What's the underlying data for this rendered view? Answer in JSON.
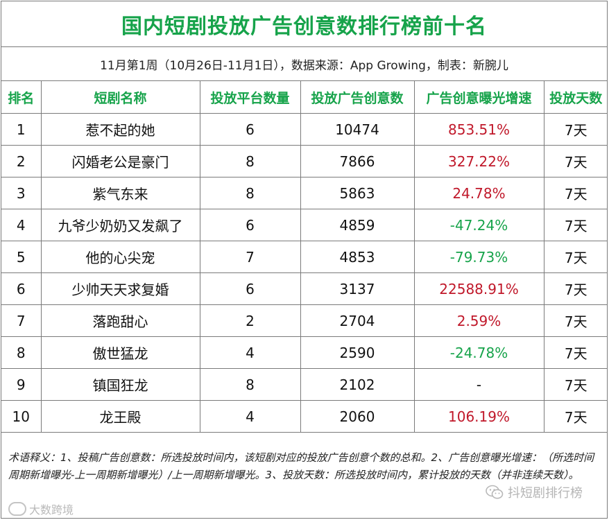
{
  "title": "国内短剧投放广告创意数排行榜前十名",
  "subtitle": "11月第1周（10月26日-11月1日），数据来源：App Growing，制表：新腕儿",
  "columns": [
    "排名",
    "短剧名称",
    "投放平台数量",
    "投放广告创意数",
    "广告创意曝光增速",
    "投放天数"
  ],
  "rows": [
    {
      "rank": "1",
      "name": "惹不起的她",
      "platforms": "6",
      "creatives": "10474",
      "growth": "853.51%",
      "trend": "up",
      "days": "7天"
    },
    {
      "rank": "2",
      "name": "闪婚老公是豪门",
      "platforms": "8",
      "creatives": "7866",
      "growth": "327.22%",
      "trend": "up",
      "days": "7天"
    },
    {
      "rank": "3",
      "name": "紫气东来",
      "platforms": "8",
      "creatives": "5863",
      "growth": "24.78%",
      "trend": "up",
      "days": "7天"
    },
    {
      "rank": "4",
      "name": "九爷少奶奶又发飙了",
      "platforms": "6",
      "creatives": "4859",
      "growth": "-47.24%",
      "trend": "down",
      "days": "7天"
    },
    {
      "rank": "5",
      "name": "他的心尖宠",
      "platforms": "7",
      "creatives": "4853",
      "growth": "-79.73%",
      "trend": "down",
      "days": "7天"
    },
    {
      "rank": "6",
      "name": "少帅天天求复婚",
      "platforms": "6",
      "creatives": "3137",
      "growth": "22588.91%",
      "trend": "up",
      "days": "7天"
    },
    {
      "rank": "7",
      "name": "落跑甜心",
      "platforms": "2",
      "creatives": "2704",
      "growth": "2.59%",
      "trend": "up",
      "days": "7天"
    },
    {
      "rank": "8",
      "name": "傲世猛龙",
      "platforms": "4",
      "creatives": "2590",
      "growth": "-24.78%",
      "trend": "down",
      "days": "7天"
    },
    {
      "rank": "9",
      "name": "镇国狂龙",
      "platforms": "8",
      "creatives": "2102",
      "growth": "-",
      "trend": "flat",
      "days": "7天"
    },
    {
      "rank": "10",
      "name": "龙王殿",
      "platforms": "4",
      "creatives": "2060",
      "growth": "106.19%",
      "trend": "up",
      "days": "7天"
    }
  ],
  "notes": "术语释义：1、投稿广告创意数：所选投放时间内，该短剧对应的投放广告创意个数的总和。2、广告创意曝光增速：（所选时间周期新增曝光-上一周期新增曝光）/上一周期新增曝光。3、投放天数：所选投放时间内，累计投放的天数（并非连续天数）。",
  "watermarks": {
    "left": "大数跨境",
    "right": "抖短剧排行榜",
    "left_icon": "cloud-logo-icon",
    "right_icon": "wechat-icon"
  },
  "colors": {
    "accent_green": "#16a34a",
    "up_red": "#c0182a",
    "down_green": "#16a34a",
    "border": "#7a7a7a"
  }
}
